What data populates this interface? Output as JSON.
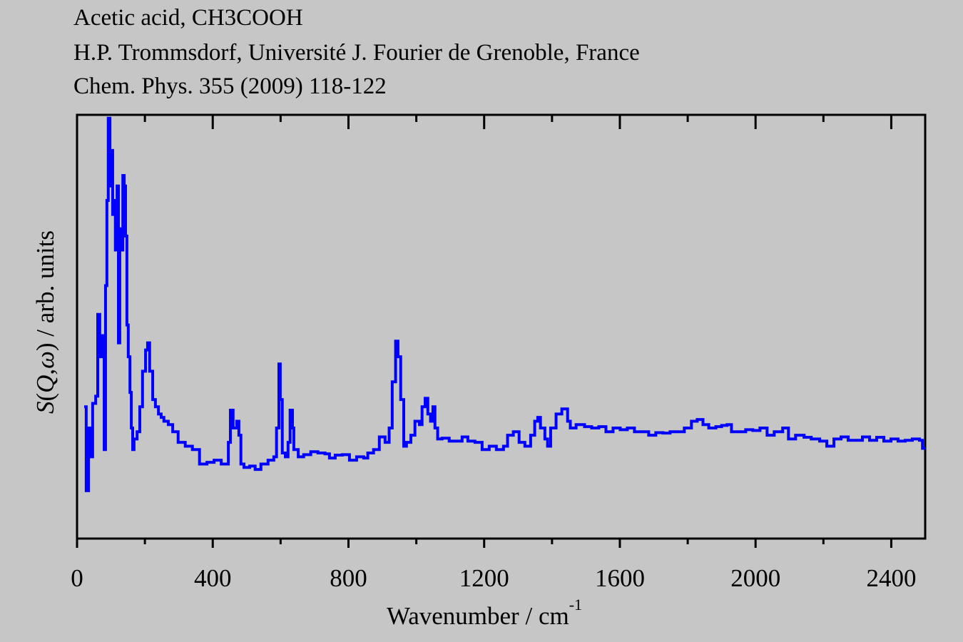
{
  "chart_data": {
    "type": "line",
    "title_lines": [
      "Acetic acid, CH3COOH",
      "H.P. Trommsdorf, Université J. Fourier de Grenoble, France",
      "Chem. Phys. 355 (2009) 118-122"
    ],
    "xlabel": "Wavenumber / cm",
    "xlabel_superscript": "-1",
    "ylabel_parts": [
      "S",
      "(",
      "Q",
      ",",
      "ω",
      ") / arb. units"
    ],
    "xlim": [
      0,
      2500
    ],
    "ylim": [
      0,
      100
    ],
    "xticks": [
      0,
      400,
      800,
      1200,
      1600,
      2000,
      2400
    ],
    "xtick_labels": [
      "0",
      "400",
      "800",
      "1200",
      "1600",
      "2000",
      "2400"
    ],
    "minor_xticks": [
      200,
      600,
      1000,
      1400,
      1800,
      2200
    ],
    "grid": false,
    "legend": "none",
    "line_color": "#0000ff",
    "series": [
      {
        "name": "S(Q,ω)",
        "x": [
          21,
          27,
          34,
          40,
          46,
          55,
          61,
          67,
          74,
          80,
          84,
          88,
          92,
          97,
          101,
          105,
          109,
          113,
          118,
          122,
          126,
          130,
          135,
          139,
          143,
          147,
          151,
          156,
          160,
          164,
          168,
          177,
          185,
          193,
          202,
          208,
          214,
          223,
          231,
          240,
          248,
          256,
          269,
          282,
          298,
          319,
          340,
          361,
          383,
          404,
          425,
          437,
          446,
          452,
          460,
          471,
          477,
          483,
          492,
          509,
          525,
          542,
          563,
          580,
          588,
          595,
          599,
          605,
          614,
          622,
          628,
          635,
          639,
          652,
          668,
          689,
          710,
          731,
          744,
          761,
          782,
          803,
          824,
          845,
          857,
          874,
          891,
          908,
          920,
          929,
          939,
          946,
          954,
          963,
          971,
          984,
          996,
          1009,
          1017,
          1026,
          1034,
          1042,
          1049,
          1055,
          1063,
          1076,
          1097,
          1118,
          1135,
          1152,
          1173,
          1194,
          1215,
          1236,
          1257,
          1269,
          1286,
          1303,
          1320,
          1337,
          1349,
          1358,
          1366,
          1379,
          1387,
          1396,
          1412,
          1429,
          1446,
          1454,
          1471,
          1496,
          1517,
          1538,
          1559,
          1580,
          1601,
          1622,
          1643,
          1664,
          1685,
          1706,
          1727,
          1748,
          1769,
          1790,
          1811,
          1828,
          1845,
          1862,
          1883,
          1900,
          1916,
          1929,
          1950,
          1971,
          1992,
          2013,
          2034,
          2055,
          2080,
          2097,
          2118,
          2143,
          2164,
          2189,
          2210,
          2231,
          2252,
          2273,
          2294,
          2315,
          2336,
          2357,
          2378,
          2399,
          2420,
          2441,
          2462,
          2483,
          2492
        ],
        "y": [
          31.1,
          11.3,
          26.1,
          19.3,
          31.9,
          33.6,
          52.9,
          42.9,
          47.9,
          21.0,
          59.7,
          79.8,
          99.2,
          83.2,
          91.6,
          76.5,
          79.8,
          68.1,
          83.2,
          46.2,
          73.1,
          68.1,
          85.7,
          83.2,
          71.4,
          50.4,
          42.9,
          34.5,
          26.1,
          21.0,
          23.5,
          25.2,
          31.1,
          39.5,
          44.5,
          46.2,
          39.5,
          32.8,
          31.1,
          29.4,
          28.6,
          27.7,
          26.9,
          25.2,
          22.7,
          21.8,
          21.0,
          17.6,
          18.0,
          18.5,
          17.6,
          17.6,
          22.7,
          30.3,
          26.1,
          27.7,
          24.4,
          17.6,
          16.8,
          17.1,
          16.3,
          17.6,
          18.5,
          19.3,
          26.1,
          41.2,
          32.8,
          20.2,
          19.3,
          22.7,
          30.3,
          26.1,
          21.0,
          19.3,
          19.8,
          20.5,
          20.2,
          20.0,
          19.0,
          19.7,
          19.8,
          18.5,
          19.3,
          19.0,
          20.2,
          21.0,
          24.0,
          22.7,
          26.1,
          37.0,
          46.6,
          42.9,
          32.8,
          21.8,
          22.7,
          24.4,
          27.7,
          26.9,
          31.1,
          33.1,
          29.4,
          27.7,
          31.1,
          26.1,
          23.5,
          23.7,
          23.0,
          23.0,
          24.0,
          23.0,
          22.7,
          21.0,
          21.8,
          21.0,
          21.8,
          24.4,
          25.2,
          22.7,
          21.8,
          24.4,
          27.7,
          28.6,
          26.1,
          23.5,
          21.8,
          26.1,
          29.4,
          30.6,
          27.7,
          26.1,
          26.9,
          26.4,
          26.1,
          26.4,
          25.2,
          26.1,
          25.7,
          26.1,
          25.2,
          25.2,
          24.4,
          25.0,
          24.9,
          25.2,
          25.2,
          26.1,
          27.7,
          28.1,
          26.9,
          26.1,
          26.4,
          26.7,
          26.9,
          25.2,
          25.2,
          25.7,
          25.5,
          26.1,
          24.4,
          25.2,
          26.1,
          23.5,
          24.4,
          23.9,
          23.5,
          23.0,
          21.8,
          23.5,
          24.0,
          23.2,
          23.2,
          24.0,
          23.2,
          23.9,
          23.0,
          23.5,
          23.0,
          23.2,
          23.5,
          23.2,
          21.3
        ]
      }
    ]
  }
}
